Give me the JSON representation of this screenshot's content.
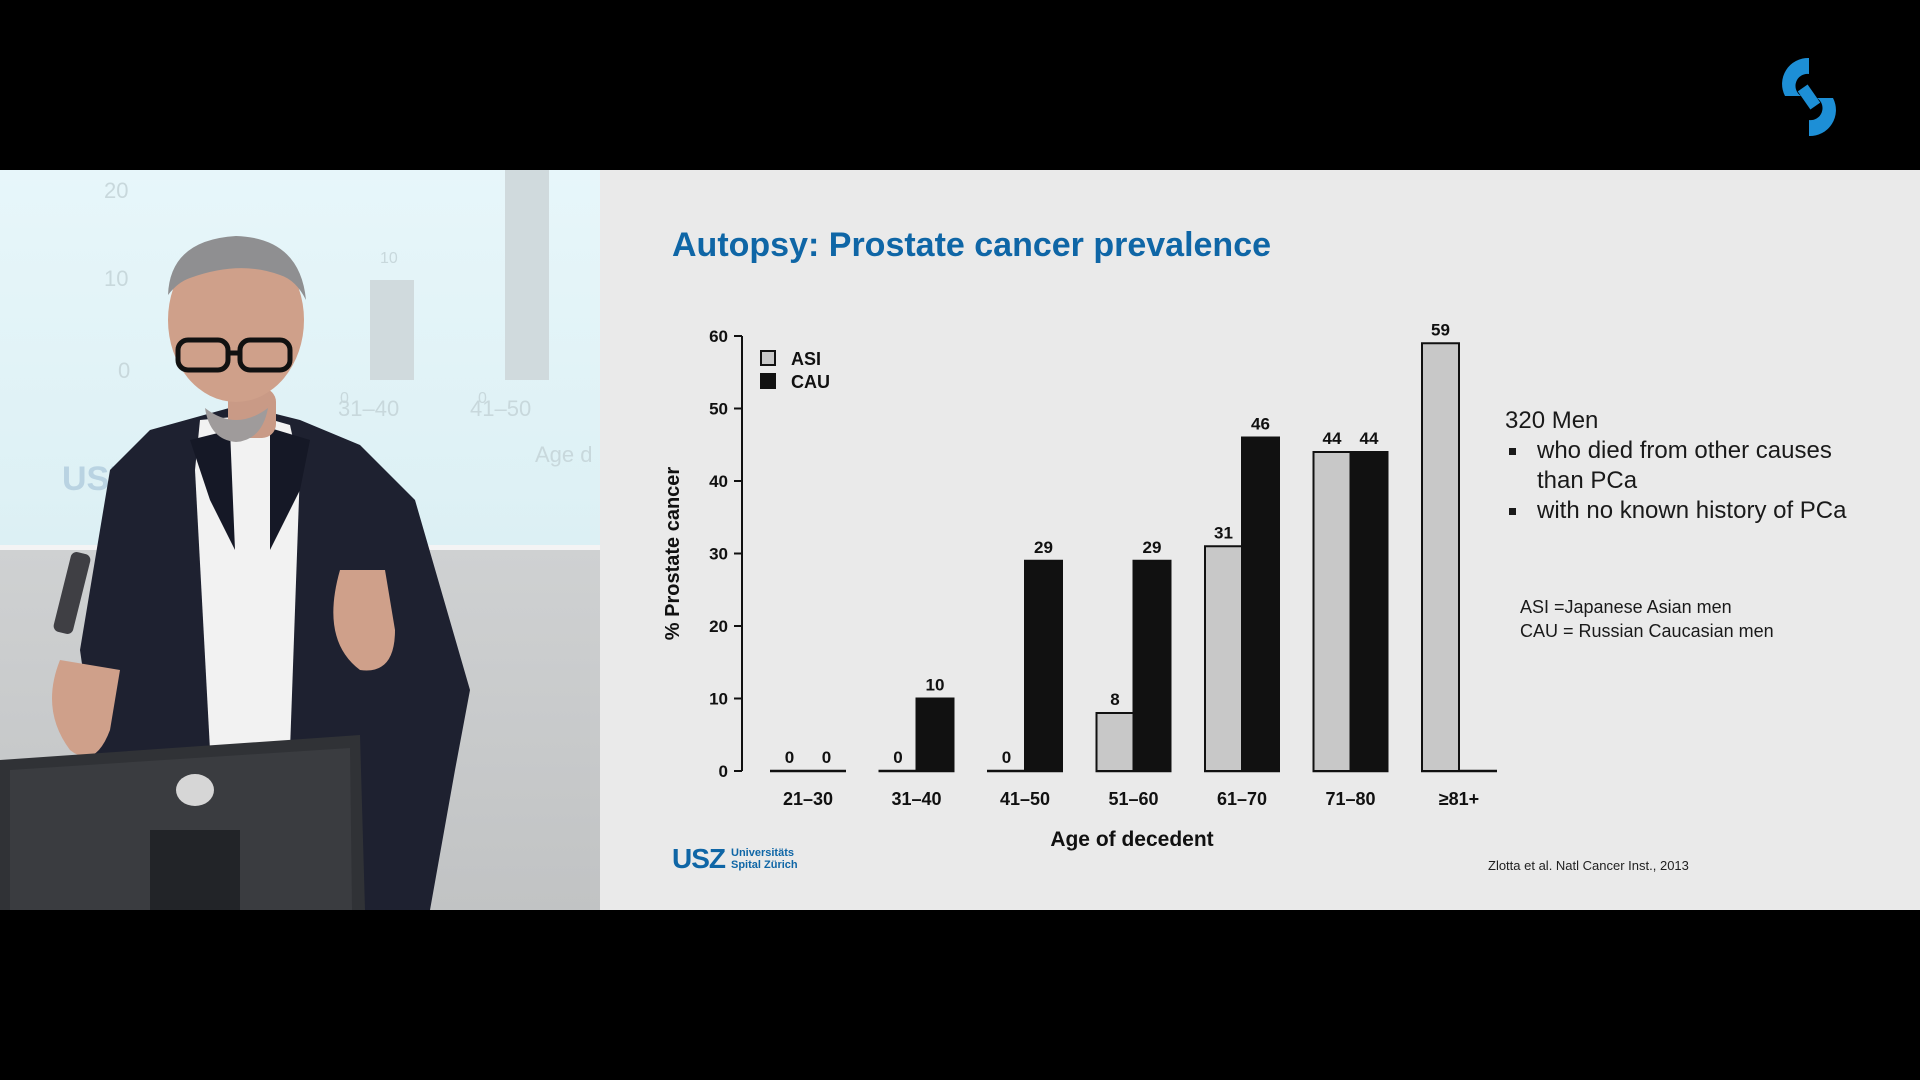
{
  "slide": {
    "title": "Autopsy: Prostate cancer prevalence",
    "info": {
      "headline": "320 Men",
      "bullets": [
        "who died from other causes than PCa",
        "with no known history of PCa"
      ]
    },
    "abbreviations": [
      "ASI =Japanese Asian men",
      "CAU = Russian Caucasian men"
    ],
    "citation": "Zlotta et al. Natl Cancer Inst., 2013",
    "logo": {
      "mark": "USZ",
      "line1": "Universitäts",
      "line2": "Spital Zürich"
    }
  },
  "chart_data": {
    "type": "bar",
    "categories": [
      "21–30",
      "31–40",
      "41–50",
      "51–60",
      "61–70",
      "71–80",
      "≥81+"
    ],
    "series": [
      {
        "name": "ASI",
        "color": "#c8c8c8",
        "values": [
          0,
          0,
          0,
          8,
          31,
          44,
          59
        ]
      },
      {
        "name": "CAU",
        "color": "#111111",
        "values": [
          0,
          10,
          29,
          29,
          46,
          44,
          null
        ]
      }
    ],
    "xlabel": "Age of decedent",
    "ylabel": "% Prostate cancer",
    "ylim": [
      0,
      60
    ],
    "yticks": [
      0,
      10,
      20,
      30,
      40,
      50,
      60
    ],
    "legend": "top-left",
    "grid": false
  },
  "video_background": {
    "ghost_texts": [
      "20",
      "10",
      "0",
      "10",
      "0",
      "0",
      "31–40",
      "41–50",
      "Age d",
      "USZ"
    ]
  },
  "colors": {
    "title_blue": "#0f66a6",
    "slide_bg": "#eaeaea",
    "logo_blue": "#1d8fd6"
  },
  "icons": {
    "brand": "brand-logo-icon"
  }
}
